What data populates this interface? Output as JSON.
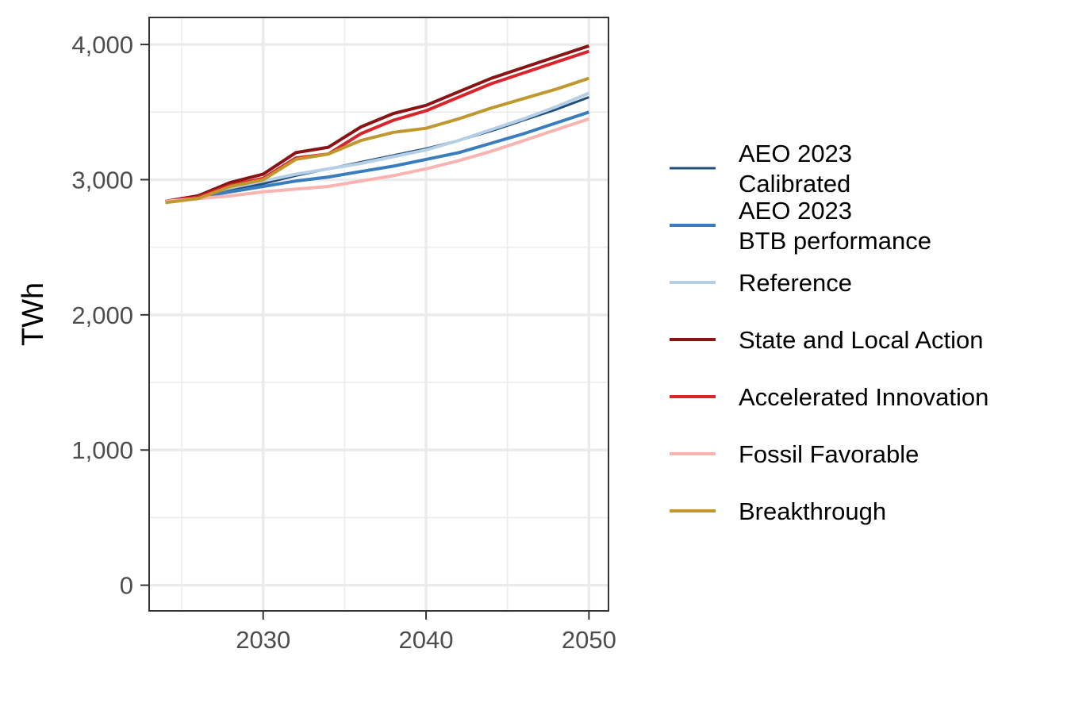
{
  "chart_data": {
    "type": "line",
    "ylabel": "TWh",
    "xlabel": "",
    "xlim": [
      2023,
      2051.2
    ],
    "ylim": [
      -190,
      4200
    ],
    "x_ticks": [
      2030,
      2040,
      2050
    ],
    "x_tick_labels": [
      "2030",
      "2040",
      "2050"
    ],
    "y_ticks": [
      0,
      1000,
      2000,
      3000,
      4000
    ],
    "y_tick_labels": [
      "0",
      "1,000",
      "2,000",
      "3,000",
      "4,000"
    ],
    "x_minor_grid": [
      2025,
      2035,
      2045
    ],
    "y_minor_grid": [
      500,
      1500,
      2500,
      3500
    ],
    "grid": true,
    "legend_position": "right",
    "x": [
      2024,
      2026,
      2028,
      2030,
      2032,
      2034,
      2036,
      2038,
      2040,
      2042,
      2044,
      2046,
      2048,
      2050
    ],
    "series": [
      {
        "name": "AEO 2023 Calibrated",
        "legend_lines": [
          "AEO 2023",
          "Calibrated"
        ],
        "color": "#1f4e79",
        "width": 3,
        "values": [
          2840,
          2880,
          2930,
          2970,
          3030,
          3080,
          3130,
          3180,
          3230,
          3290,
          3360,
          3440,
          3520,
          3610
        ]
      },
      {
        "name": "AEO 2023 BTB performance",
        "legend_lines": [
          "AEO 2023",
          "BTB performance"
        ],
        "color": "#3a7dbf",
        "width": 4,
        "values": [
          2840,
          2870,
          2910,
          2950,
          2990,
          3020,
          3060,
          3100,
          3150,
          3200,
          3270,
          3340,
          3420,
          3500
        ]
      },
      {
        "name": "Reference",
        "legend_lines": [
          "Reference"
        ],
        "color": "#b7cfe6",
        "width": 4,
        "values": [
          2840,
          2880,
          2940,
          2990,
          3040,
          3080,
          3120,
          3170,
          3220,
          3290,
          3370,
          3450,
          3540,
          3640
        ]
      },
      {
        "name": "State and Local Action",
        "legend_lines": [
          "State and Local Action"
        ],
        "color": "#8b1313",
        "width": 4,
        "values": [
          2840,
          2880,
          2980,
          3040,
          3200,
          3240,
          3390,
          3490,
          3550,
          3650,
          3750,
          3830,
          3910,
          3990
        ]
      },
      {
        "name": "Accelerated Innovation",
        "legend_lines": [
          "Accelerated Innovation"
        ],
        "color": "#d8242a",
        "width": 4,
        "values": [
          2840,
          2870,
          2960,
          3010,
          3160,
          3190,
          3340,
          3440,
          3510,
          3610,
          3710,
          3790,
          3870,
          3950
        ]
      },
      {
        "name": "Fossil Favorable",
        "legend_lines": [
          "Fossil Favorable"
        ],
        "color": "#f9b4b0",
        "width": 4,
        "values": [
          2840,
          2860,
          2880,
          2910,
          2930,
          2950,
          2990,
          3030,
          3080,
          3140,
          3210,
          3290,
          3370,
          3450
        ]
      },
      {
        "name": "Breakthrough",
        "legend_lines": [
          "Breakthrough"
        ],
        "color": "#bf982e",
        "width": 4,
        "values": [
          2830,
          2860,
          2950,
          3000,
          3150,
          3190,
          3290,
          3350,
          3380,
          3450,
          3530,
          3600,
          3670,
          3750
        ]
      }
    ]
  }
}
